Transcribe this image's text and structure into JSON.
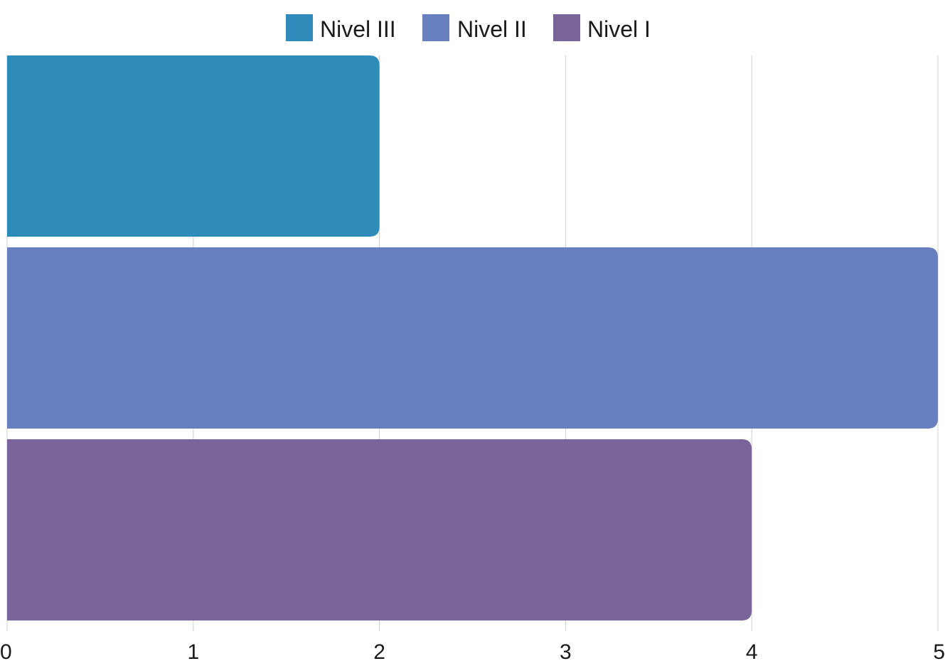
{
  "chart_data": {
    "type": "bar",
    "orientation": "horizontal",
    "categories": [
      "Nivel III",
      "Nivel II",
      "Nivel I"
    ],
    "series": [
      {
        "name": "Nivel III",
        "values": [
          2,
          null,
          null
        ],
        "color": "#2E8BBA"
      },
      {
        "name": "Nivel II",
        "values": [
          null,
          5,
          null
        ],
        "color": "#6980C0"
      },
      {
        "name": "Nivel I",
        "values": [
          null,
          null,
          4
        ],
        "color": "#7A659A"
      }
    ],
    "xlim": [
      0,
      5
    ],
    "x_ticks": [
      "0",
      "1",
      "2",
      "3",
      "4",
      "5"
    ],
    "grid": true,
    "legend_position": "top-center",
    "title": "",
    "xlabel": "",
    "ylabel": ""
  }
}
